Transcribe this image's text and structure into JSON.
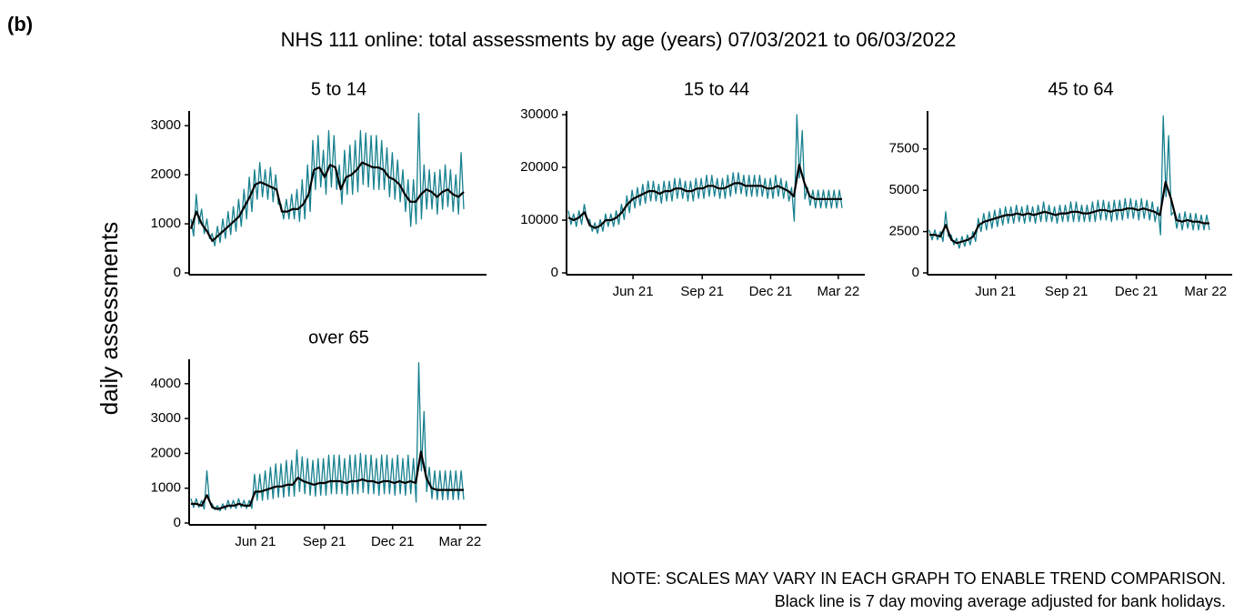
{
  "label": "(b)",
  "title": "NHS 111 online: total assessments by age (years) 07/03/2021 to 06/03/2022",
  "y_label": "daily assessments",
  "notes": [
    "NOTE: SCALES MAY VARY IN EACH GRAPH TO ENABLE TREND COMPARISON.",
    "Black line is 7 day moving average adjusted for bank holidays."
  ],
  "chart_data": [
    {
      "type": "line",
      "title": "5 to 14",
      "xlim": [
        "2021-03-07",
        "2022-03-06"
      ],
      "ylim": [
        0,
        3300
      ],
      "yticks": [
        0,
        1000,
        2000,
        3000
      ],
      "series": [
        {
          "color": "#17808f",
          "values": [
            1100,
            750,
            1600,
            1000,
            1300,
            800,
            1100,
            700,
            800,
            550,
            950,
            620,
            1100,
            700,
            1250,
            780,
            1350,
            850,
            1500,
            950,
            1700,
            1100,
            1950,
            1250,
            2100,
            1500,
            2250,
            1550,
            2100,
            1500,
            2150,
            1450,
            2000,
            1400,
            1400,
            1100,
            1500,
            1100,
            1600,
            1100,
            1700,
            1050,
            1900,
            1100,
            2200,
            1250,
            2700,
            1700,
            2800,
            1750,
            2500,
            1600,
            2900,
            1750,
            2800,
            1700,
            2200,
            1400,
            2500,
            1600,
            2600,
            1600,
            2700,
            1650,
            2900,
            1800,
            2850,
            1750,
            2800,
            1700,
            2800,
            1700,
            2700,
            1700,
            2550,
            1550,
            2450,
            1500,
            2300,
            1450,
            2100,
            1250,
            1900,
            950,
            1900,
            1000,
            3250,
            1100,
            2200,
            1300,
            2100,
            1300,
            2050,
            1200,
            2100,
            1300,
            2200,
            1350,
            2100,
            1250,
            2000,
            1200,
            2450,
            1300
          ]
        },
        {
          "color": "#000000",
          "values": [
            900,
            1250,
            1000,
            850,
            650,
            750,
            850,
            950,
            1050,
            1150,
            1350,
            1550,
            1800,
            1850,
            1800,
            1750,
            1700,
            1250,
            1250,
            1300,
            1300,
            1400,
            1600,
            2100,
            2150,
            1950,
            2200,
            2150,
            1700,
            1950,
            2000,
            2100,
            2250,
            2200,
            2150,
            2150,
            2100,
            1950,
            1900,
            1800,
            1600,
            1450,
            1450,
            1600,
            1700,
            1650,
            1550,
            1650,
            1700,
            1600,
            1550,
            1650
          ]
        }
      ]
    },
    {
      "type": "line",
      "title": "15 to 44",
      "xlim": [
        "2021-03-07",
        "2022-03-06"
      ],
      "xticks": [
        {
          "value": "2021-06",
          "label": "Jun 21"
        },
        {
          "value": "2021-09",
          "label": "Sep 21"
        },
        {
          "value": "2021-12",
          "label": "Dec 21"
        },
        {
          "value": "2022-03",
          "label": "Mar 22"
        }
      ],
      "ylim": [
        0,
        30700
      ],
      "yticks": [
        0,
        10000,
        20000,
        30000
      ],
      "series": [
        {
          "color": "#17808f",
          "values": [
            11800,
            9200,
            11200,
            8800,
            11800,
            9200,
            13000,
            10100,
            10100,
            7900,
            9500,
            7500,
            10100,
            7900,
            11200,
            8800,
            11200,
            8800,
            11800,
            9200,
            13000,
            10100,
            14600,
            11400,
            15700,
            12300,
            16200,
            12800,
            16800,
            13200,
            17400,
            13600,
            17400,
            13600,
            16800,
            13200,
            17400,
            13600,
            17400,
            13600,
            17900,
            14100,
            17900,
            14100,
            17400,
            13600,
            17400,
            13600,
            17900,
            14100,
            17900,
            14100,
            18500,
            14500,
            18500,
            14500,
            17900,
            14100,
            17900,
            14100,
            18500,
            14500,
            19000,
            15000,
            19000,
            15000,
            18500,
            14500,
            18500,
            14500,
            18500,
            14500,
            18500,
            14500,
            17900,
            14100,
            17900,
            14100,
            18500,
            14500,
            17900,
            14100,
            17400,
            13600,
            16200,
            9800,
            30000,
            18000,
            27000,
            14000,
            16200,
            12800,
            15700,
            12300,
            15700,
            12300,
            15700,
            12300,
            15700,
            12300,
            15700,
            12300,
            15700,
            12300
          ]
        },
        {
          "color": "#000000",
          "values": [
            10500,
            10000,
            10500,
            11500,
            9000,
            8500,
            9000,
            10000,
            10000,
            10500,
            11500,
            13000,
            14000,
            14500,
            15000,
            15500,
            15500,
            15000,
            15500,
            15500,
            16000,
            16000,
            15500,
            15500,
            16000,
            16000,
            16500,
            16500,
            16000,
            16000,
            16500,
            17000,
            17000,
            16500,
            16500,
            16500,
            16500,
            16000,
            16000,
            16500,
            16000,
            15500,
            14500,
            20500,
            17000,
            14500,
            14000,
            14000,
            14000,
            14000,
            14000,
            14000
          ]
        }
      ]
    },
    {
      "type": "line",
      "title": "45 to 64",
      "xlim": [
        "2021-03-07",
        "2022-03-06"
      ],
      "xticks": [
        {
          "value": "2021-06",
          "label": "Jun 21"
        },
        {
          "value": "2021-09",
          "label": "Sep 21"
        },
        {
          "value": "2021-12",
          "label": "Dec 21"
        },
        {
          "value": "2022-03",
          "label": "Mar 22"
        }
      ],
      "ylim": [
        0,
        9800
      ],
      "yticks": [
        0,
        2500,
        5000,
        7500
      ],
      "series": [
        {
          "color": "#17808f",
          "values": [
            2600,
            2000,
            2600,
            2000,
            2500,
            1900,
            3700,
            2200,
            2300,
            1700,
            2100,
            1500,
            2200,
            1600,
            2300,
            1700,
            2500,
            1900,
            3300,
            2500,
            3600,
            2600,
            3700,
            2700,
            3800,
            2800,
            3900,
            2900,
            4000,
            3000,
            4000,
            3000,
            4100,
            3100,
            4000,
            3000,
            4100,
            3100,
            4000,
            3000,
            4100,
            3100,
            4300,
            3100,
            4100,
            3100,
            4000,
            3000,
            4100,
            3100,
            4100,
            3100,
            4300,
            3100,
            4300,
            3100,
            4100,
            3100,
            4100,
            3100,
            4300,
            3100,
            4400,
            3200,
            4400,
            3200,
            4300,
            3100,
            4400,
            3200,
            4400,
            3200,
            4500,
            3300,
            4500,
            3300,
            4400,
            3200,
            4500,
            3300,
            4400,
            3200,
            4300,
            3100,
            4000,
            2300,
            9500,
            4600,
            8300,
            3500,
            3700,
            2700,
            3600,
            2600,
            3700,
            2700,
            3600,
            2600,
            3600,
            2600,
            3500,
            2600,
            3500,
            2600
          ]
        },
        {
          "color": "#000000",
          "values": [
            2300,
            2300,
            2200,
            2900,
            2000,
            1800,
            1900,
            2000,
            2200,
            2900,
            3100,
            3200,
            3300,
            3400,
            3500,
            3500,
            3600,
            3500,
            3600,
            3500,
            3600,
            3700,
            3600,
            3500,
            3600,
            3600,
            3700,
            3700,
            3600,
            3600,
            3700,
            3800,
            3800,
            3700,
            3800,
            3800,
            3900,
            3900,
            3800,
            3900,
            3800,
            3700,
            3500,
            5500,
            4500,
            3200,
            3100,
            3200,
            3100,
            3100,
            3000,
            3000
          ]
        }
      ]
    },
    {
      "type": "line",
      "title": "over 65",
      "xlim": [
        "2021-03-07",
        "2022-03-06"
      ],
      "xticks": [
        {
          "value": "2021-06",
          "label": "Jun 21"
        },
        {
          "value": "2021-09",
          "label": "Sep 21"
        },
        {
          "value": "2021-12",
          "label": "Dec 21"
        },
        {
          "value": "2022-03",
          "label": "Mar 22"
        }
      ],
      "ylim": [
        0,
        4700
      ],
      "yticks": [
        0,
        1000,
        2000,
        3000,
        4000
      ],
      "series": [
        {
          "color": "#17808f",
          "values": [
            700,
            450,
            700,
            450,
            650,
            400,
            1500,
            600,
            550,
            380,
            500,
            350,
            550,
            380,
            650,
            420,
            650,
            420,
            700,
            450,
            650,
            420,
            650,
            420,
            1400,
            650,
            1400,
            650,
            1500,
            680,
            1600,
            700,
            1700,
            740,
            1700,
            740,
            1800,
            770,
            1800,
            770,
            2100,
            900,
            1900,
            840,
            1850,
            800,
            1800,
            770,
            1850,
            800,
            1850,
            800,
            1950,
            840,
            1950,
            840,
            1950,
            840,
            1850,
            800,
            1950,
            840,
            1950,
            840,
            2000,
            880,
            1950,
            840,
            1950,
            840,
            1850,
            800,
            1950,
            840,
            1950,
            840,
            1850,
            800,
            1950,
            840,
            1850,
            800,
            1950,
            840,
            1850,
            600,
            4600,
            1500,
            3200,
            900,
            1600,
            700,
            1500,
            670,
            1500,
            670,
            1500,
            670,
            1500,
            670,
            1500,
            670,
            1500,
            670
          ]
        },
        {
          "color": "#000000",
          "values": [
            550,
            550,
            500,
            800,
            450,
            400,
            450,
            500,
            500,
            550,
            500,
            500,
            900,
            900,
            950,
            1000,
            1050,
            1050,
            1100,
            1100,
            1300,
            1200,
            1150,
            1100,
            1150,
            1150,
            1200,
            1200,
            1200,
            1150,
            1200,
            1200,
            1250,
            1200,
            1200,
            1150,
            1200,
            1200,
            1150,
            1200,
            1150,
            1200,
            1150,
            2050,
            1300,
            1000,
            950,
            950,
            950,
            950,
            950,
            950
          ]
        }
      ]
    }
  ]
}
